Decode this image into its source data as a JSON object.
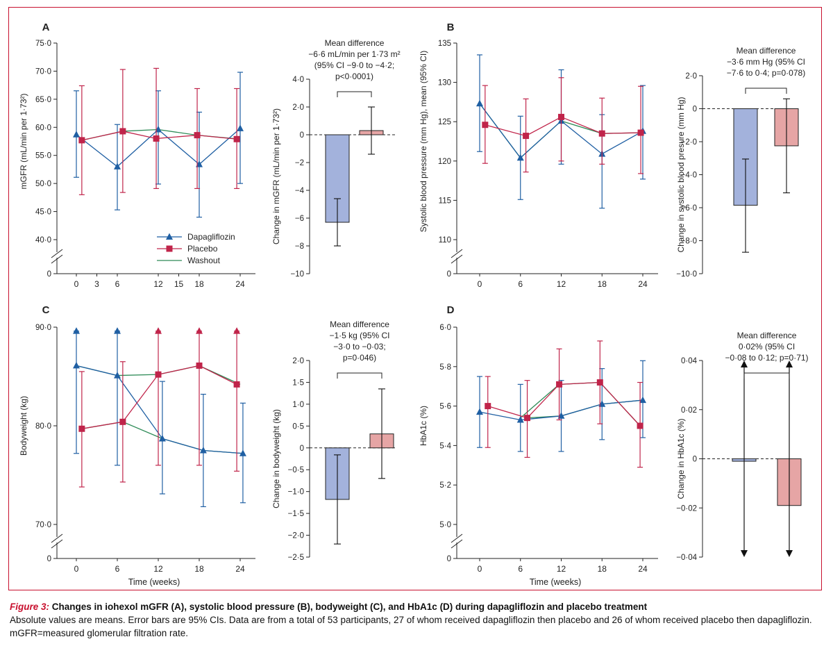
{
  "caption": {
    "label": "Figure 3:",
    "title": " Changes in iohexol mGFR (A), systolic blood pressure (B), bodyweight (C), and HbA1c (D) during dapagliflozin and placebo treatment",
    "line2": "Absolute values are means. Error bars are 95% CIs. Data are from a total of 53 participants, 27 of whom received dapagliflozin then placebo and 26 of whom received placebo then dapagliflozin.",
    "line3": "mGFR=measured glomerular filtration rate."
  },
  "colors": {
    "dapagliflozin": "#1f5fa3",
    "placebo": "#c0244a",
    "washout": "#2e8b57",
    "bar_dapa": "#a3b2dc",
    "bar_placebo": "#e6a5a5",
    "frame": "#c8102e"
  },
  "legend": [
    "Dapagliflozin",
    "Placebo",
    "Washout"
  ],
  "chart_data": [
    {
      "panel": "A",
      "type": "line",
      "ylabel": "mGFR (mL/min per 1·73²)",
      "xlabel": "",
      "ylim": [
        40,
        75
      ],
      "yticks": [
        "40·0",
        "45·0",
        "50·0",
        "55·0",
        "60·0",
        "65·0",
        "70·0",
        "75·0"
      ],
      "zero_label": "0",
      "xticks": [
        "0",
        "3",
        "6",
        "12",
        "15",
        "18",
        "24"
      ],
      "xtick_values": [
        0,
        3,
        6,
        12,
        15,
        18,
        24
      ],
      "series": [
        {
          "name": "Dapagliflozin",
          "x": [
            0,
            6,
            12,
            18,
            24
          ],
          "values": [
            58.7,
            53.0,
            59.6,
            53.4,
            59.8
          ],
          "lo": [
            51.1,
            45.3,
            49.9,
            44.0,
            50.0
          ],
          "hi": [
            66.5,
            60.5,
            66.5,
            62.7,
            69.8
          ]
        },
        {
          "name": "Placebo",
          "x": [
            0.8,
            6.8,
            11.7,
            17.7,
            23.5
          ],
          "values": [
            57.7,
            59.3,
            58.0,
            58.6,
            57.9
          ],
          "lo": [
            48.0,
            48.4,
            49.1,
            49.1,
            49.1
          ],
          "hi": [
            67.4,
            70.3,
            70.5,
            66.9,
            66.9
          ]
        },
        {
          "name": "Washout",
          "x": [
            0.8,
            6.8,
            12,
            17.7,
            24
          ],
          "values": [
            57.7,
            59.3,
            59.6,
            58.6,
            57.9
          ]
        }
      ]
    },
    {
      "panel": "A-bar",
      "type": "bar",
      "ylabel": "Change in mGFR (mL/min per 1·73²)",
      "ylim": [
        -10,
        4
      ],
      "yticks": [
        "−10",
        "−8",
        "−6",
        "−4",
        "−2",
        "0",
        "2·0",
        "4·0"
      ],
      "annotation": [
        "Mean difference",
        "−6·6 mL/min per 1·73 m²",
        "(95% CI −9·0 to −4·2;",
        "p<0·0001)"
      ],
      "bars": [
        {
          "name": "Dapagliflozin",
          "value": -6.3,
          "lo": -8.0,
          "hi": -4.6
        },
        {
          "name": "Placebo",
          "value": 0.3,
          "lo": -1.4,
          "hi": 2.0
        }
      ]
    },
    {
      "panel": "B",
      "type": "line",
      "ylabel": "Systolic blood pressure (mm Hg), mean (95% CI)",
      "xlabel": "",
      "ylim": [
        110,
        135
      ],
      "yticks": [
        "110",
        "115",
        "120",
        "125",
        "130",
        "135"
      ],
      "zero_label": "0",
      "xticks": [
        "0",
        "6",
        "12",
        "18",
        "24"
      ],
      "xtick_values": [
        0,
        6,
        12,
        18,
        24
      ],
      "series": [
        {
          "name": "Dapagliflozin",
          "x": [
            0,
            6,
            12,
            18,
            24
          ],
          "values": [
            127.3,
            120.4,
            125.1,
            120.9,
            123.8
          ],
          "lo": [
            121.2,
            115.1,
            119.6,
            114.0,
            117.7
          ],
          "hi": [
            133.5,
            125.7,
            131.6,
            125.9,
            129.6
          ]
        },
        {
          "name": "Placebo",
          "x": [
            0.8,
            6.8,
            12,
            18,
            23.7
          ],
          "values": [
            124.6,
            123.2,
            125.6,
            123.5,
            123.6
          ],
          "lo": [
            119.7,
            118.6,
            120.0,
            119.6,
            118.4
          ],
          "hi": [
            129.6,
            127.9,
            130.6,
            128.0,
            129.5
          ]
        },
        {
          "name": "Washout",
          "x": [
            0,
            6,
            12,
            18,
            24
          ],
          "values": [
            127.3,
            120.4,
            125.1,
            123.5,
            123.6
          ]
        }
      ]
    },
    {
      "panel": "B-bar",
      "type": "bar",
      "ylabel": "Change in systolic blood presure (mm Hg)",
      "ylim": [
        -10,
        2
      ],
      "yticks": [
        "−10·0",
        "−8·0",
        "−6·0",
        "−4·0",
        "−2·0",
        "0",
        "2·0"
      ],
      "annotation": [
        "Mean difference",
        "−3·6 mm Hg (95% CI",
        "−7·6 to 0·4; p=0·078)"
      ],
      "bars": [
        {
          "name": "Dapagliflozin",
          "value": -5.85,
          "lo": -8.7,
          "hi": -3.05
        },
        {
          "name": "Placebo",
          "value": -2.25,
          "lo": -5.1,
          "hi": 0.6
        }
      ]
    },
    {
      "panel": "C",
      "type": "line",
      "ylabel": "Bodyweight (kg)",
      "xlabel": "Time (weeks)",
      "ylim": [
        70,
        90
      ],
      "yticks": [
        "70·0",
        "80·0",
        "90·0"
      ],
      "zero_label": "0",
      "xticks": [
        "0",
        "6",
        "12",
        "18",
        "24"
      ],
      "xtick_values": [
        0,
        6,
        12,
        18,
        24
      ],
      "series": [
        {
          "name": "Dapagliflozin",
          "x": [
            0,
            6,
            12.6,
            18.6,
            24.4
          ],
          "values": [
            86.1,
            85.1,
            78.7,
            77.5,
            77.2
          ],
          "lo": [
            77.2,
            76.0,
            73.1,
            71.8,
            72.2
          ],
          "hi": [
            89.6,
            89.6,
            84.5,
            83.2,
            82.3
          ]
        },
        {
          "name": "Placebo",
          "x": [
            0.8,
            6.8,
            12,
            18,
            23.5
          ],
          "values": [
            79.7,
            80.4,
            85.2,
            86.1,
            84.2
          ],
          "lo": [
            73.8,
            74.3,
            76.0,
            76.0,
            75.4
          ],
          "hi": [
            85.5,
            86.5,
            89.6,
            89.6,
            89.6
          ]
        },
        {
          "name": "Washout",
          "x": [
            0,
            6,
            12,
            18,
            24
          ],
          "values": [
            86.1,
            85.1,
            85.2,
            86.1,
            84.2
          ]
        },
        {
          "name": "Washout",
          "x": [
            0.8,
            6.8,
            12.6,
            18.6,
            24.4
          ],
          "values": [
            79.7,
            80.4,
            78.7,
            77.5,
            77.2
          ]
        }
      ]
    },
    {
      "panel": "C-bar",
      "type": "bar",
      "ylabel": "Change in bodyweight (kg)",
      "ylim": [
        -2.5,
        2.0
      ],
      "yticks": [
        "−2·5",
        "−2·0",
        "−1·5",
        "−1·0",
        "−0·5",
        "0",
        "0·5",
        "1·0",
        "1·5",
        "2·0"
      ],
      "annotation": [
        "Mean difference",
        "−1·5 kg (95% CI",
        "−3·0 to −0·03;",
        "p=0·046)"
      ],
      "bars": [
        {
          "name": "Dapagliflozin",
          "value": -1.18,
          "lo": -2.2,
          "hi": -0.16
        },
        {
          "name": "Placebo",
          "value": 0.32,
          "lo": -0.7,
          "hi": 1.35
        }
      ]
    },
    {
      "panel": "D",
      "type": "line",
      "ylabel": "HbA1c (%)",
      "xlabel": "Time (weeks)",
      "ylim": [
        5.0,
        6.0
      ],
      "yticks": [
        "5·0",
        "5·2",
        "5·4",
        "5·6",
        "5·8",
        "6·0"
      ],
      "zero_label": "0",
      "xticks": [
        "0",
        "6",
        "12",
        "18",
        "24"
      ],
      "xtick_values": [
        0,
        6,
        12,
        18,
        24
      ],
      "series": [
        {
          "name": "Dapagliflozin",
          "x": [
            0,
            6,
            12,
            18,
            24
          ],
          "values": [
            5.57,
            5.53,
            5.55,
            5.61,
            5.63
          ],
          "lo": [
            5.39,
            5.37,
            5.37,
            5.43,
            5.44
          ],
          "hi": [
            5.75,
            5.71,
            5.73,
            5.79,
            5.83
          ]
        },
        {
          "name": "Placebo",
          "x": [
            1.2,
            7,
            11.7,
            17.7,
            23.6
          ],
          "values": [
            5.6,
            5.54,
            5.71,
            5.72,
            5.5
          ],
          "lo": [
            5.39,
            5.34,
            5.53,
            5.51,
            5.29
          ],
          "hi": [
            5.75,
            5.73,
            5.89,
            5.93,
            5.72
          ]
        },
        {
          "name": "Washout",
          "x": [
            6,
            11.7,
            17.7,
            23.6
          ],
          "values": [
            5.54,
            5.71,
            5.72,
            5.5
          ]
        },
        {
          "name": "Washout",
          "x": [
            7,
            12,
            18,
            24
          ],
          "values": [
            5.54,
            5.55,
            5.61,
            5.63
          ]
        }
      ]
    },
    {
      "panel": "D-bar",
      "type": "bar",
      "ylabel": "Change in HbA1c (%)",
      "ylim": [
        -0.04,
        0.04
      ],
      "yticks": [
        "−0·04",
        "−0·02",
        "0",
        "0·02",
        "0·04"
      ],
      "annotation": [
        "Mean difference",
        "0·02% (95% CI",
        "−0·08 to 0·12; p=0·71)"
      ],
      "bars": [
        {
          "name": "Dapagliflozin",
          "value": -0.001,
          "lo": -0.04,
          "hi": 0.04
        },
        {
          "name": "Placebo",
          "value": -0.019,
          "lo": -0.04,
          "hi": 0.04
        }
      ]
    }
  ],
  "panel_letters": [
    "A",
    "B",
    "C",
    "D"
  ]
}
